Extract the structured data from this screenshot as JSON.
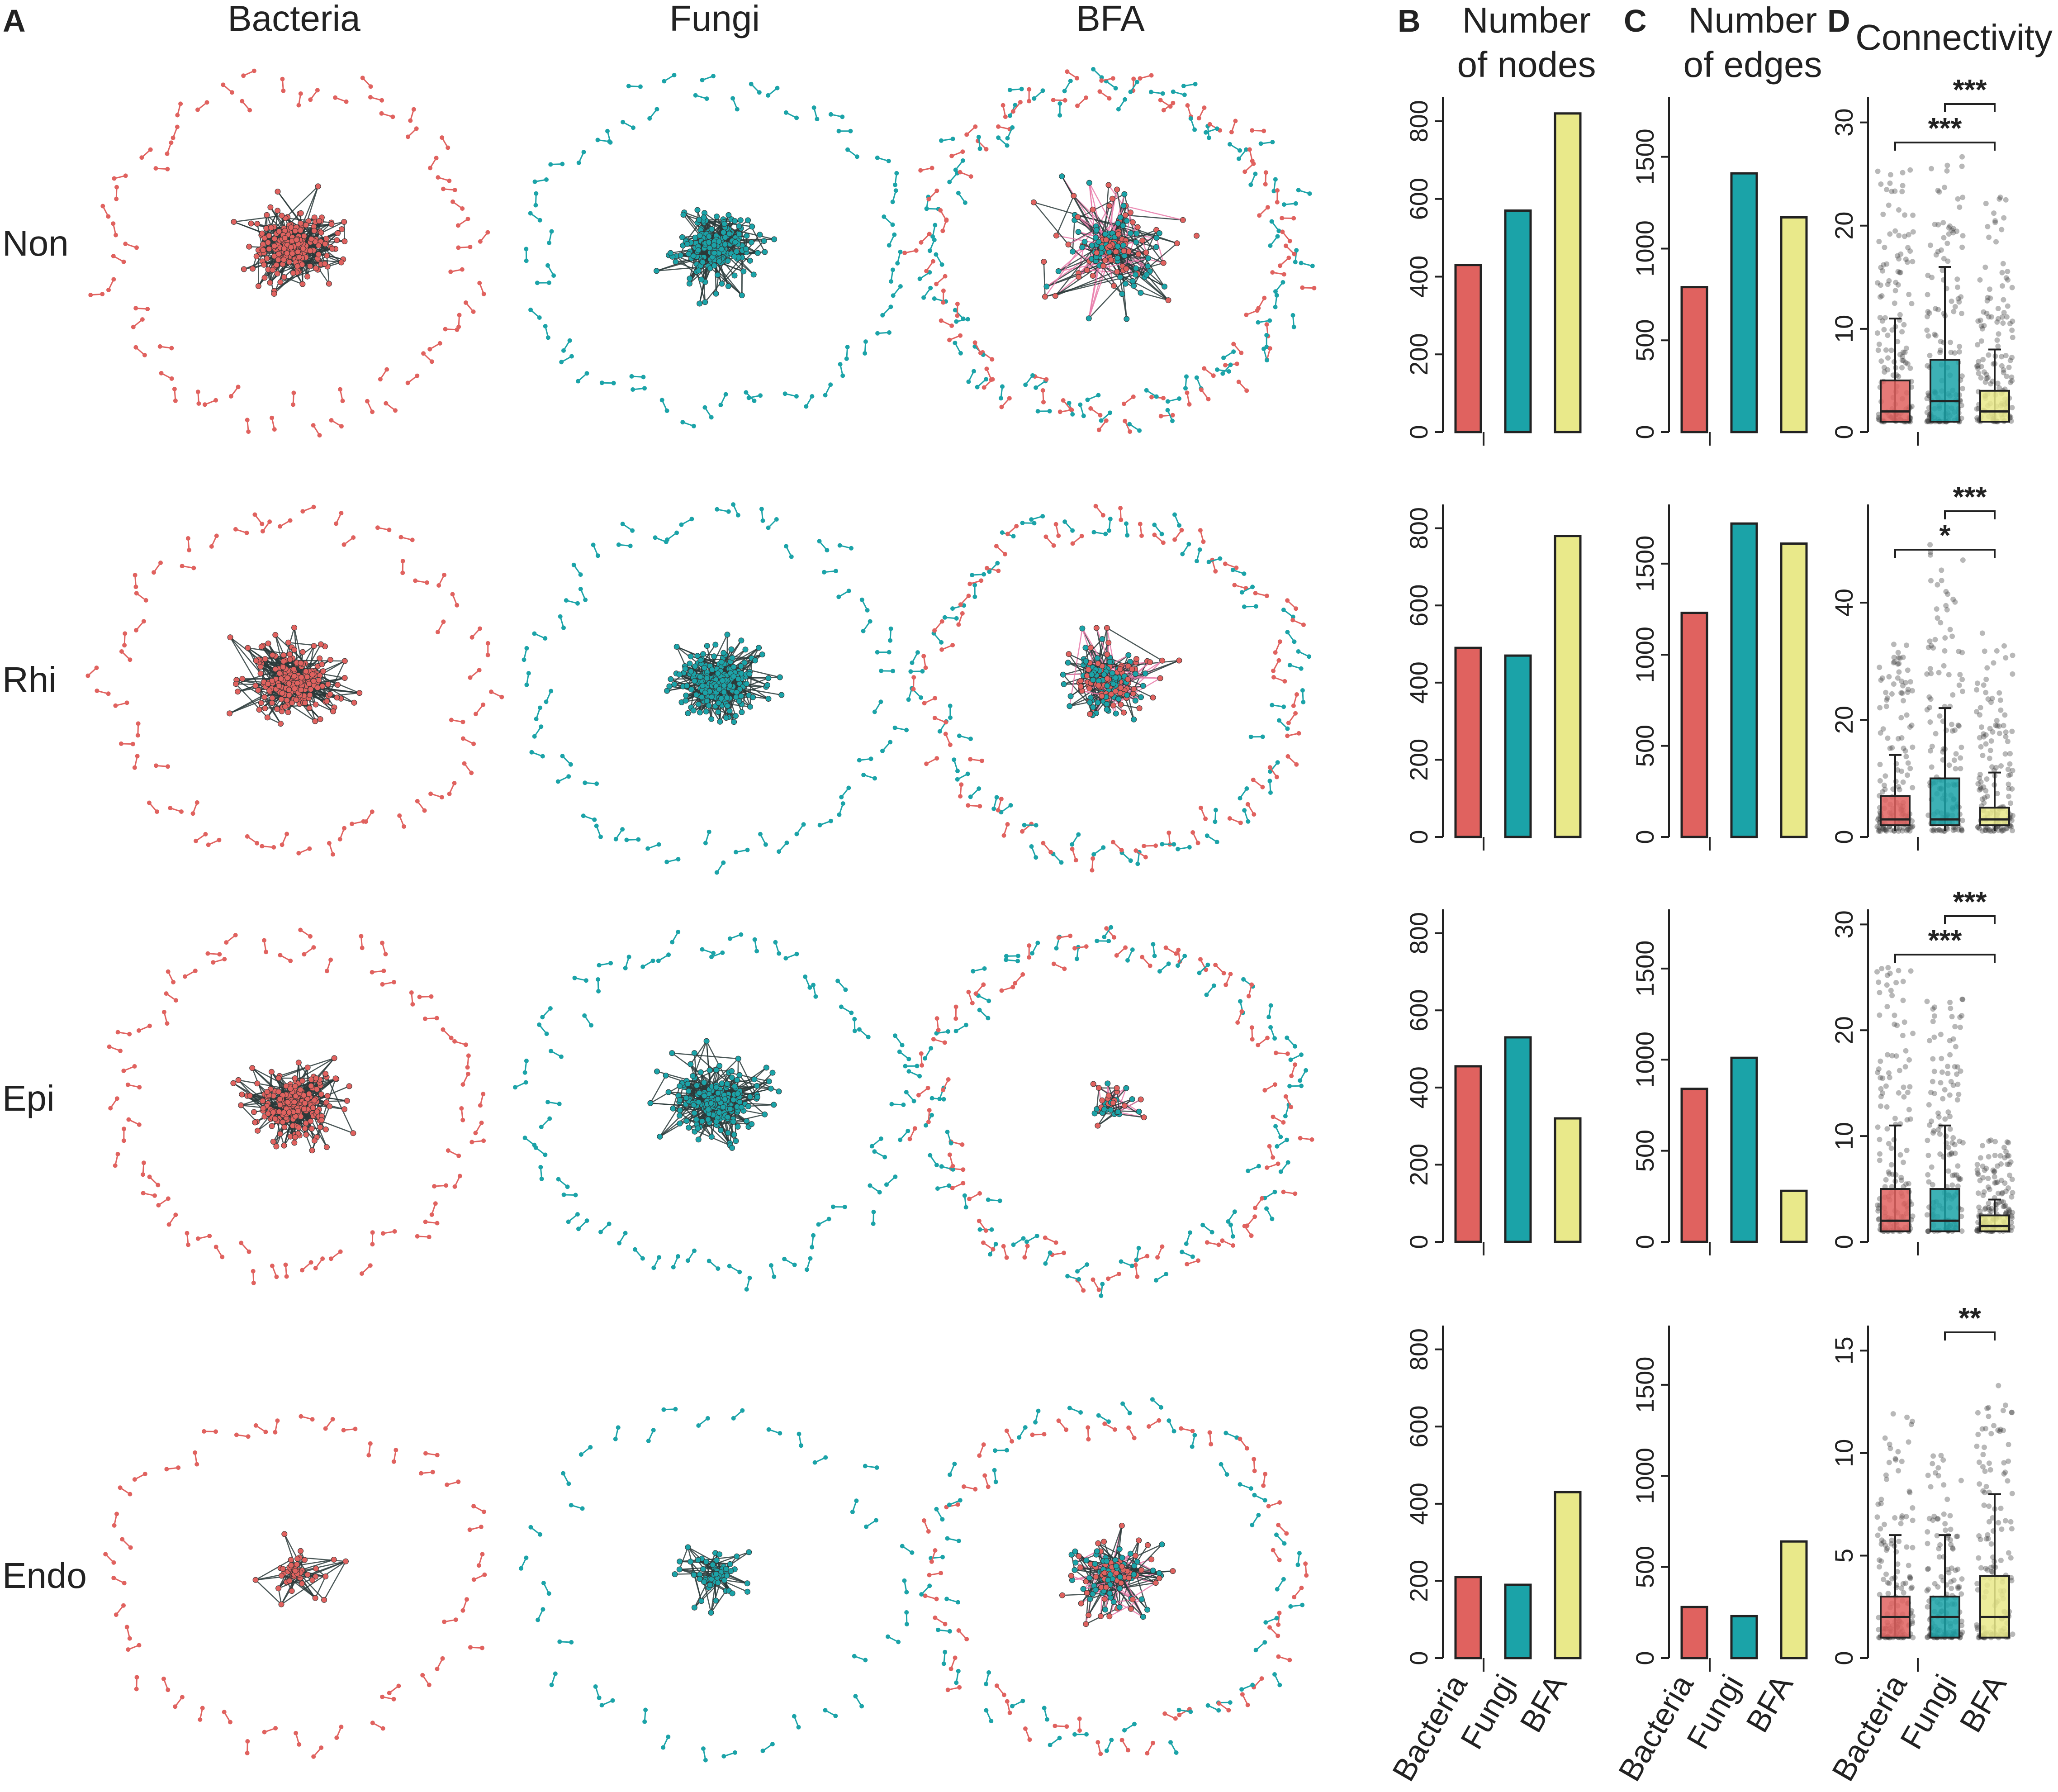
{
  "figure": {
    "panel_letters": [
      "A",
      "B",
      "C",
      "D"
    ],
    "network_columns": [
      "Bacteria",
      "Fungi",
      "BFA"
    ],
    "rows": [
      "Non",
      "Rhi",
      "Epi",
      "Endo"
    ],
    "panel_titles": {
      "B": [
        "Number",
        "of nodes"
      ],
      "C": [
        "Number",
        "of edges"
      ],
      "D": [
        "Connectivity"
      ]
    },
    "colors": {
      "bacteria": "#E0625F",
      "fungi": "#1BA3A8",
      "bfa": "#E9E98A",
      "edge_dark": "#2a3a3a",
      "edge_pink": "#E97AA9"
    }
  },
  "chart_data": [
    {
      "panel": "B",
      "type": "bar",
      "title": "Number of nodes",
      "categories": [
        "Bacteria",
        "Fungi",
        "BFA"
      ],
      "ylim": [
        0,
        850
      ],
      "yticks": [
        "0",
        "200",
        "400",
        "600",
        "800"
      ],
      "series": [
        {
          "name": "Non",
          "values": [
            430,
            570,
            820
          ]
        },
        {
          "name": "Rhi",
          "values": [
            490,
            470,
            780
          ]
        },
        {
          "name": "Epi",
          "values": [
            455,
            530,
            320
          ]
        },
        {
          "name": "Endo",
          "values": [
            210,
            190,
            430
          ]
        }
      ]
    },
    {
      "panel": "C",
      "type": "bar",
      "title": "Number of edges",
      "categories": [
        "Bacteria",
        "Fungi",
        "BFA"
      ],
      "ylim": [
        0,
        1800
      ],
      "yticks": [
        "0",
        "500",
        "1000",
        "1500"
      ],
      "series": [
        {
          "name": "Non",
          "values": [
            790,
            1410,
            1170
          ]
        },
        {
          "name": "Rhi",
          "values": [
            1230,
            1720,
            1610
          ]
        },
        {
          "name": "Epi",
          "values": [
            840,
            1010,
            280
          ]
        },
        {
          "name": "Endo",
          "values": [
            280,
            230,
            640
          ]
        }
      ]
    },
    {
      "panel": "D",
      "type": "box",
      "title": "Connectivity",
      "categories": [
        "Bacteria",
        "Fungi",
        "BFA"
      ],
      "rows": [
        {
          "name": "Non",
          "ylim": [
            0,
            32
          ],
          "yticks": [
            "0",
            "10",
            "20",
            "30"
          ],
          "boxes": [
            {
              "min": 1,
              "q1": 1,
              "median": 2,
              "q3": 5,
              "max": 11,
              "max_outlier": 26
            },
            {
              "min": 1,
              "q1": 1,
              "median": 3,
              "q3": 7,
              "max": 16,
              "max_outlier": 27
            },
            {
              "min": 1,
              "q1": 1,
              "median": 2,
              "q3": 4,
              "max": 8,
              "max_outlier": 23
            }
          ],
          "significance": [
            {
              "from": "Fungi",
              "to": "BFA",
              "label": "***"
            },
            {
              "from": "Bacteria",
              "to": "BFA",
              "label": "***"
            }
          ]
        },
        {
          "name": "Rhi",
          "ylim": [
            0,
            56
          ],
          "yticks": [
            "0",
            "20",
            "40"
          ],
          "boxes": [
            {
              "min": 1,
              "q1": 2,
              "median": 3,
              "q3": 7,
              "max": 14,
              "max_outlier": 33
            },
            {
              "min": 1,
              "q1": 2,
              "median": 3,
              "q3": 10,
              "max": 22,
              "max_outlier": 50
            },
            {
              "min": 1,
              "q1": 2,
              "median": 3,
              "q3": 5,
              "max": 11,
              "max_outlier": 35
            }
          ],
          "significance": [
            {
              "from": "Fungi",
              "to": "BFA",
              "label": "***"
            },
            {
              "from": "Bacteria",
              "to": "BFA",
              "label": "*"
            }
          ]
        },
        {
          "name": "Epi",
          "ylim": [
            0,
            31
          ],
          "yticks": [
            "0",
            "10",
            "20",
            "30"
          ],
          "boxes": [
            {
              "min": 1,
              "q1": 1,
              "median": 2,
              "q3": 5,
              "max": 11,
              "max_outlier": 26
            },
            {
              "min": 1,
              "q1": 1,
              "median": 2,
              "q3": 5,
              "max": 11,
              "max_outlier": 23
            },
            {
              "min": 1,
              "q1": 1,
              "median": 1.5,
              "q3": 2.5,
              "max": 4,
              "max_outlier": 10
            }
          ],
          "significance": [
            {
              "from": "Fungi",
              "to": "BFA",
              "label": "***"
            },
            {
              "from": "Bacteria",
              "to": "BFA",
              "label": "***"
            }
          ]
        },
        {
          "name": "Endo",
          "ylim": [
            0,
            16
          ],
          "yticks": [
            "0",
            "5",
            "10",
            "15"
          ],
          "boxes": [
            {
              "min": 1,
              "q1": 1,
              "median": 2,
              "q3": 3,
              "max": 6,
              "max_outlier": 12
            },
            {
              "min": 1,
              "q1": 1,
              "median": 2,
              "q3": 3,
              "max": 6,
              "max_outlier": 10
            },
            {
              "min": 1,
              "q1": 1,
              "median": 2,
              "q3": 4,
              "max": 8,
              "max_outlier": 13.5
            }
          ],
          "significance": [
            {
              "from": "Fungi",
              "to": "BFA",
              "label": "**"
            }
          ]
        }
      ]
    }
  ]
}
